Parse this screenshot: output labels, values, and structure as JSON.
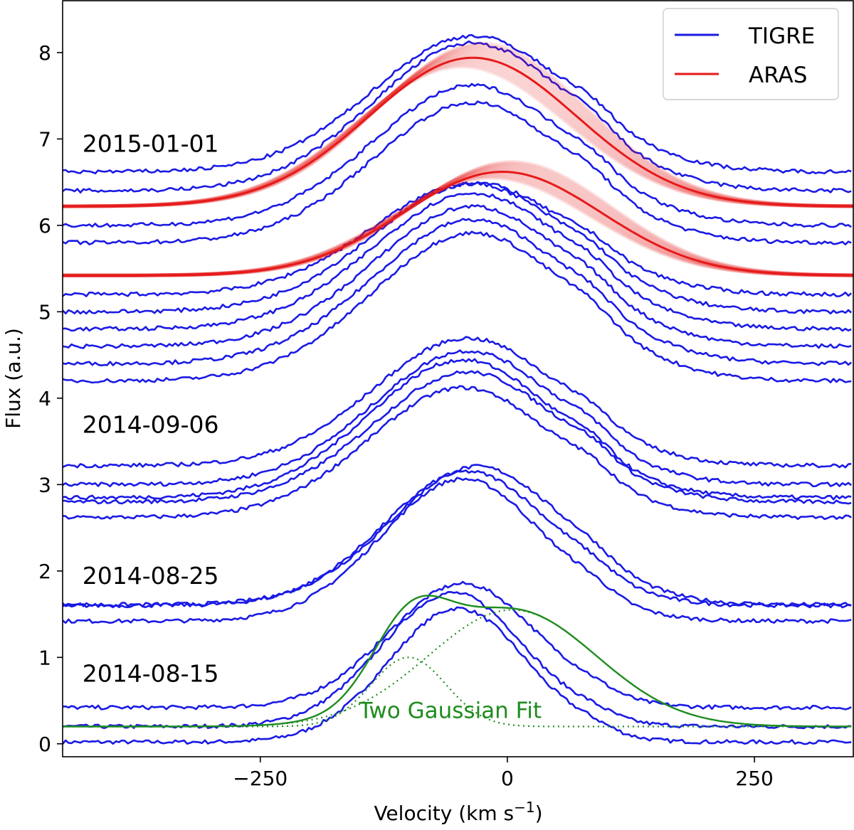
{
  "chart_data": {
    "type": "line",
    "xlabel": "Velocity (km s",
    "xlabel_sup": "−1",
    "xlabel_close": ")",
    "ylabel": "Flux (a.u.)",
    "xlim": [
      -450,
      350
    ],
    "ylim": [
      -0.15,
      8.6
    ],
    "xticks": [
      -250,
      0,
      250
    ],
    "xtick_labels": [
      "−250",
      "0",
      "250"
    ],
    "yticks": [
      0,
      1,
      2,
      3,
      4,
      5,
      6,
      7,
      8
    ],
    "ytick_labels": [
      "0",
      "1",
      "2",
      "3",
      "4",
      "5",
      "6",
      "7",
      "8"
    ],
    "legend": {
      "placement": "top-right",
      "entries": [
        {
          "label": "TIGRE",
          "color": "#1a1ae6"
        },
        {
          "label": "ARAS",
          "color": "#e61a1a"
        }
      ]
    },
    "epoch_labels": [
      {
        "text": "2015-01-01",
        "x": -430,
        "y": 6.85
      },
      {
        "text": "2014-09-06",
        "x": -430,
        "y": 3.6
      },
      {
        "text": "2014-08-25",
        "x": -430,
        "y": 1.85
      },
      {
        "text": "2014-08-15",
        "x": -430,
        "y": 0.72
      }
    ],
    "fit_label": {
      "text": "Two Gaussian Fit",
      "x": -150,
      "y": 0.3,
      "color": "#1f8c1f"
    },
    "colors": {
      "tigre": "#1a1ae6",
      "aras": "#e61a1a",
      "fit": "#1f8c1f"
    },
    "series": [
      {
        "group": "TIGRE",
        "base": 0.02,
        "peak": 1.62,
        "center": -50,
        "width": 70,
        "skew": 0.0,
        "shoulder": 0.15
      },
      {
        "group": "TIGRE",
        "base": 0.2,
        "peak": 1.62,
        "center": -55,
        "width": 72,
        "skew": 0.0,
        "shoulder": 0.15
      },
      {
        "group": "TIGRE",
        "base": 0.42,
        "peak": 1.5,
        "center": -45,
        "width": 75,
        "skew": 0.0,
        "shoulder": 0.15
      },
      {
        "group": "TIGRE",
        "base": 1.42,
        "peak": 1.75,
        "center": -45,
        "width": 82,
        "skew": 0.0,
        "shoulder": 0.2
      },
      {
        "group": "TIGRE",
        "base": 1.6,
        "peak": 1.65,
        "center": -40,
        "width": 85,
        "skew": 0.0,
        "shoulder": 0.2
      },
      {
        "group": "TIGRE",
        "base": 1.61,
        "peak": 1.7,
        "center": -30,
        "width": 88,
        "skew": 0.0,
        "shoulder": 0.2
      },
      {
        "group": "TIGRE",
        "base": 2.62,
        "peak": 1.65,
        "center": -45,
        "width": 95,
        "skew": 0.0,
        "shoulder": 0.3
      },
      {
        "group": "TIGRE",
        "base": 2.8,
        "peak": 1.65,
        "center": -40,
        "width": 95,
        "skew": 0.0,
        "shoulder": 0.3
      },
      {
        "group": "TIGRE",
        "base": 2.85,
        "peak": 1.75,
        "center": -45,
        "width": 95,
        "skew": 0.0,
        "shoulder": 0.3
      },
      {
        "group": "TIGRE",
        "base": 3.0,
        "peak": 1.7,
        "center": -40,
        "width": 95,
        "skew": 0.0,
        "shoulder": 0.3
      },
      {
        "group": "TIGRE",
        "base": 3.22,
        "peak": 1.62,
        "center": -40,
        "width": 95,
        "skew": 0.0,
        "shoulder": 0.3
      },
      {
        "group": "TIGRE",
        "base": 4.2,
        "peak": 1.85,
        "center": -35,
        "width": 100,
        "skew": 0.0,
        "shoulder": 0.25
      },
      {
        "group": "TIGRE",
        "base": 4.4,
        "peak": 1.8,
        "center": -35,
        "width": 100,
        "skew": 0.0,
        "shoulder": 0.25
      },
      {
        "group": "TIGRE",
        "base": 4.6,
        "peak": 1.75,
        "center": -35,
        "width": 100,
        "skew": 0.0,
        "shoulder": 0.25
      },
      {
        "group": "TIGRE",
        "base": 4.8,
        "peak": 1.7,
        "center": -35,
        "width": 100,
        "skew": 0.0,
        "shoulder": 0.25
      },
      {
        "group": "TIGRE",
        "base": 5.0,
        "peak": 1.6,
        "center": -35,
        "width": 100,
        "skew": 0.0,
        "shoulder": 0.25
      },
      {
        "group": "TIGRE",
        "base": 5.2,
        "peak": 1.4,
        "center": -35,
        "width": 100,
        "skew": 0.0,
        "shoulder": 0.25
      },
      {
        "group": "TIGRE",
        "base": 5.8,
        "peak": 1.75,
        "center": -35,
        "width": 100,
        "skew": 0.0,
        "shoulder": 0.25
      },
      {
        "group": "TIGRE",
        "base": 6.0,
        "peak": 1.75,
        "center": -35,
        "width": 100,
        "skew": 0.0,
        "shoulder": 0.25
      },
      {
        "group": "TIGRE",
        "base": 6.4,
        "peak": 1.85,
        "center": -35,
        "width": 100,
        "skew": 0.0,
        "shoulder": 0.25
      },
      {
        "group": "TIGRE",
        "base": 6.62,
        "peak": 1.7,
        "center": -35,
        "width": 100,
        "skew": 0.0,
        "shoulder": 0.25
      },
      {
        "group": "ARAS",
        "base": 5.42,
        "peak": 1.2,
        "center": -5,
        "width": 100,
        "skew": 0.0,
        "shoulder": 0.0
      },
      {
        "group": "ARAS",
        "base": 6.22,
        "peak": 1.72,
        "center": -35,
        "width": 105,
        "skew": 0.0,
        "shoulder": 0.0
      }
    ],
    "fit": {
      "base": 0.2,
      "components": [
        {
          "amplitude": 0.8,
          "center": -100,
          "sigma": 38
        },
        {
          "amplitude": 1.35,
          "center": 5,
          "sigma": 85
        }
      ]
    }
  }
}
